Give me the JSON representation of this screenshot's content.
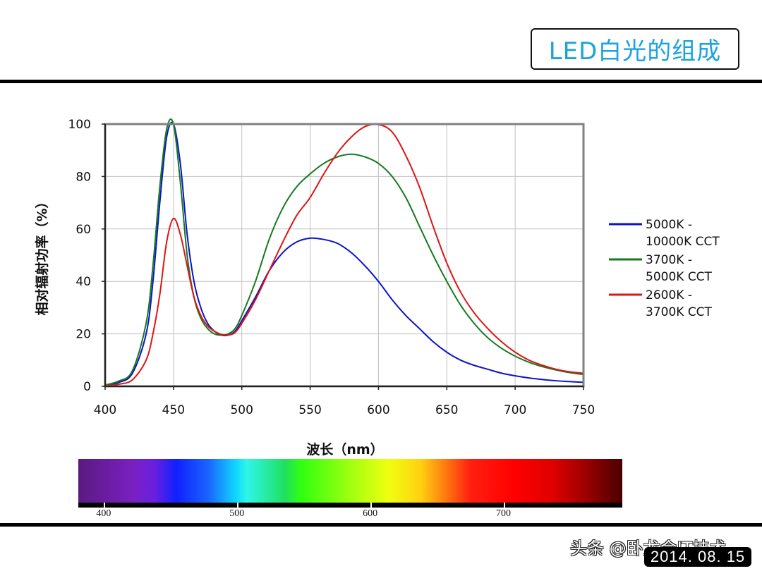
{
  "slide": {
    "title": "LED白光的组成",
    "watermark": "头条 @卧龙会IT技术",
    "date": "2014. 08. 15"
  },
  "colors": {
    "title": "#1aa3dd",
    "series_blue": "#0a14c8",
    "series_green": "#157a1f",
    "series_red": "#e01414",
    "grid": "#c0c0c0",
    "frame": "#808080"
  },
  "spectrum_bar": {
    "ticks": [
      {
        "label": "400",
        "pos": 0.0465
      },
      {
        "label": "500",
        "pos": 0.2915
      },
      {
        "label": "600",
        "pos": 0.5365
      },
      {
        "label": "700",
        "pos": 0.7815
      }
    ]
  },
  "chart_data": {
    "type": "line",
    "title": "",
    "xlabel": "波长（nm）",
    "ylabel": "相对辐射功率（%）",
    "xlim": [
      400,
      750
    ],
    "ylim": [
      0,
      100
    ],
    "xticks": [
      "400",
      "450",
      "500",
      "550",
      "600",
      "650",
      "700",
      "750"
    ],
    "yticks": [
      "0",
      "20",
      "40",
      "60",
      "80",
      "100"
    ],
    "grid": true,
    "legend_position": "right",
    "x": [
      400,
      410,
      420,
      430,
      435,
      440,
      445,
      450,
      455,
      460,
      465,
      470,
      475,
      480,
      485,
      490,
      495,
      500,
      510,
      520,
      530,
      540,
      550,
      560,
      570,
      580,
      590,
      600,
      610,
      620,
      630,
      640,
      650,
      660,
      670,
      680,
      690,
      700,
      710,
      720,
      730,
      740,
      750
    ],
    "series": [
      {
        "name": "5000K - 10000K CCT",
        "color": "#0a14c8",
        "values": [
          0.5,
          1.5,
          5,
          20,
          40,
          70,
          95,
          100,
          85,
          58,
          40,
          30,
          24,
          21,
          19.5,
          19.5,
          21,
          25,
          34,
          44,
          51,
          55,
          56.5,
          56,
          54.5,
          51,
          46,
          40,
          33,
          27,
          22,
          17,
          13,
          10,
          8,
          6.5,
          5,
          4,
          3.2,
          2.6,
          2.1,
          1.8,
          1.5
        ]
      },
      {
        "name": "3700K - 5000K CCT",
        "color": "#157a1f",
        "values": [
          0.5,
          2,
          6,
          24,
          46,
          76,
          98,
          100,
          78,
          50,
          34,
          26,
          22,
          20,
          19.5,
          20,
          22,
          27,
          40,
          56,
          68,
          76,
          81,
          85,
          87.5,
          88.5,
          87.5,
          85,
          80,
          72,
          61,
          50,
          40,
          31,
          24,
          18.5,
          14.5,
          11.5,
          9.2,
          7.5,
          6.2,
          5.2,
          4.5
        ]
      },
      {
        "name": "2600K - 3700K CCT",
        "color": "#e01414",
        "values": [
          0.2,
          0.8,
          2.5,
          10,
          20,
          35,
          55,
          64,
          58,
          46,
          34,
          27,
          23,
          21,
          19.8,
          19.5,
          20.5,
          24,
          33,
          44,
          55,
          65,
          72,
          81,
          89,
          95,
          99,
          99.8,
          97,
          88,
          76,
          61,
          47,
          36,
          28,
          22,
          17,
          13,
          10,
          8,
          6.5,
          5.5,
          5
        ]
      }
    ]
  }
}
